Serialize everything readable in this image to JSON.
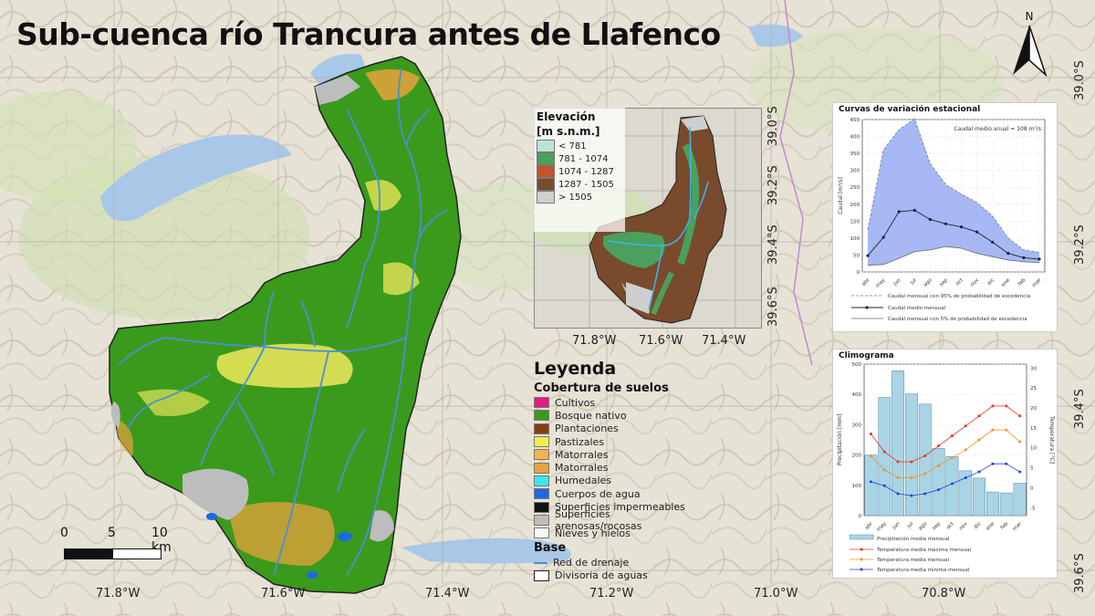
{
  "title": "Sub-cuenca río Trancura antes de Llafenco",
  "map": {
    "lon_labels": [
      "71.8°W",
      "71.6°W",
      "71.4°W",
      "71.2°W",
      "71.0°W",
      "70.8°W"
    ],
    "lat_labels": [
      "39.0°S",
      "39.2°S",
      "39.4°S",
      "39.6°S"
    ]
  },
  "north_arrow": {
    "letter": "N"
  },
  "scalebar": {
    "ticks": [
      "0",
      "5",
      "10 km"
    ]
  },
  "inset": {
    "legend_title": "Elevación",
    "legend_unit": "[m s.n.m.]",
    "classes": [
      {
        "label": "< 781",
        "color": "#b9e6d3"
      },
      {
        "label": "781 - 1074",
        "color": "#4aa05c"
      },
      {
        "label": "1074 - 1287",
        "color": "#c4542a"
      },
      {
        "label": "1287 - 1505",
        "color": "#7a4a2c"
      },
      {
        "label": "> 1505",
        "color": "#cfcfcf"
      }
    ],
    "lon_labels": [
      "71.8°W",
      "71.6°W",
      "71.4°W"
    ],
    "lat_labels": [
      "39.0°S",
      "39.2°S",
      "39.4°S",
      "39.6°S"
    ]
  },
  "legend": {
    "title": "Leyenda",
    "landcover_title": "Cobertura de suelos",
    "landcover": [
      {
        "label": "Cultivos",
        "color": "#e8187f"
      },
      {
        "label": "Bosque nativo",
        "color": "#3a9a1c"
      },
      {
        "label": "Plantaciones",
        "color": "#8b3a12"
      },
      {
        "label": "Pastizales",
        "color": "#f2ee4c"
      },
      {
        "label": "Matorrales",
        "color": "#f5b44a"
      },
      {
        "label": "Matorrales",
        "color": "#e8a23c"
      },
      {
        "label": "Humedales",
        "color": "#38e8f0"
      },
      {
        "label": "Cuerpos de agua",
        "color": "#1a6ae0"
      },
      {
        "label": "Superficies impermeables",
        "color": "#111111"
      },
      {
        "label": "Superficies arenosas/rocosas",
        "color": "#bdbdbd"
      },
      {
        "label": "Nieves y hielos",
        "color": "#f6f6f6"
      }
    ],
    "base_title": "Base",
    "base": [
      {
        "label": "Red de drenaje",
        "kind": "line",
        "color": "#4a8fd8"
      },
      {
        "label": "Divisoria de aguas",
        "kind": "box",
        "color": "#222222"
      }
    ]
  },
  "chart_data": [
    {
      "type": "area",
      "title": "Curvas de variación estacional",
      "annotation": "Caudal medio anual = 108 m³/s",
      "ylabel": "Caudal [m³/s]",
      "categories": [
        "abr",
        "may",
        "jun",
        "jul",
        "ago",
        "sep",
        "oct",
        "nov",
        "dic",
        "ene",
        "feb",
        "mar"
      ],
      "ylim": [
        0,
        450
      ],
      "yticks": [
        0,
        50,
        100,
        150,
        200,
        250,
        300,
        350,
        400,
        450
      ],
      "series": [
        {
          "name": "Caudal mensual con 95% de probabilidad de excedencia",
          "values": [
            20,
            22,
            40,
            60,
            65,
            75,
            70,
            55,
            45,
            35,
            30,
            28
          ]
        },
        {
          "name": "Caudal medio mensual",
          "values": [
            48,
            102,
            178,
            182,
            155,
            142,
            133,
            118,
            88,
            55,
            42,
            38
          ]
        },
        {
          "name": "Caudal mensual con 5% de probabilidad de excedencia",
          "values": [
            125,
            360,
            420,
            452,
            320,
            258,
            230,
            205,
            165,
            100,
            65,
            58
          ]
        }
      ],
      "legend": [
        "Caudal mensual con 95% de probabilidad de excedencia",
        "Caudal medio mensual",
        "Caudal mensual con 5% de probabilidad de excedencia"
      ],
      "grid": true
    },
    {
      "type": "bar",
      "title": "Climograma",
      "ylabel": "Precipitación [mm]",
      "y2label": "Temperatura [°C]",
      "categories": [
        "abr",
        "may",
        "jun",
        "jul",
        "ago",
        "sep",
        "oct",
        "nov",
        "dic",
        "ene",
        "feb",
        "mar"
      ],
      "ylim": [
        0,
        500
      ],
      "yticks": [
        0,
        100,
        200,
        300,
        400,
        500
      ],
      "y2lim": [
        -7,
        31
      ],
      "y2ticks": [
        -5,
        0,
        5,
        10,
        15,
        20,
        25,
        30
      ],
      "precipitation": [
        200,
        390,
        478,
        402,
        368,
        222,
        195,
        148,
        124,
        78,
        75,
        107
      ],
      "series": [
        {
          "name": "Temperatura media máxima mensual",
          "color": "#e8332a",
          "values": [
            13.5,
            9.0,
            6.5,
            6.5,
            8.0,
            10.5,
            13.0,
            15.5,
            18.0,
            20.5,
            20.5,
            18.0
          ]
        },
        {
          "name": "Temperatura media mensual",
          "color": "#f09030",
          "values": [
            8.0,
            4.5,
            2.5,
            2.5,
            3.5,
            5.5,
            7.5,
            9.5,
            12.0,
            14.5,
            14.5,
            11.5
          ]
        },
        {
          "name": "Temperatura media mínima mensual",
          "color": "#2040e0",
          "values": [
            1.5,
            0.5,
            -1.5,
            -2.0,
            -1.5,
            -0.5,
            1.0,
            2.5,
            4.0,
            6.0,
            6.0,
            4.0
          ]
        }
      ],
      "legend": [
        "Precipitación media mensual",
        "Temperatura media máxima mensual",
        "Temperatura media mensual",
        "Temperatura media mínima mensual"
      ],
      "grid": true
    }
  ]
}
